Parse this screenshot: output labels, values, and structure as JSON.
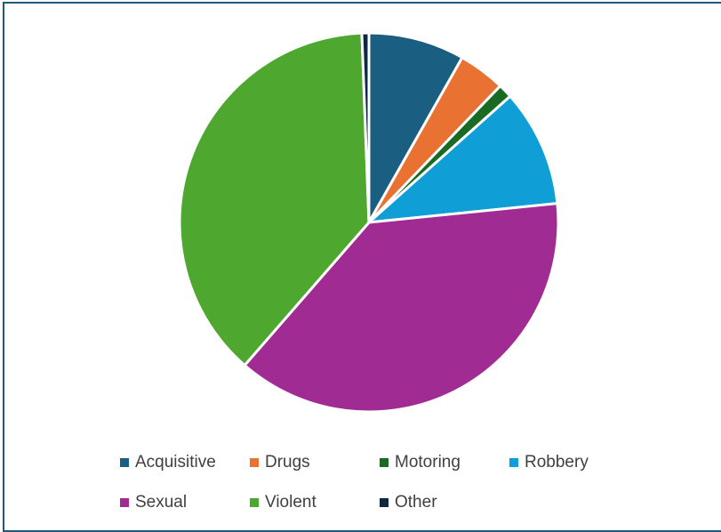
{
  "chart_data": {
    "type": "pie",
    "title": "",
    "categories": [
      "Acquisitive",
      "Drugs",
      "Motoring",
      "Robbery",
      "Sexual",
      "Violent",
      "Other"
    ],
    "values": [
      8.2,
      4.0,
      1.2,
      10.0,
      38.0,
      38.0,
      0.6
    ],
    "colors": [
      "#1a5e82",
      "#e97132",
      "#196b24",
      "#0f9ed5",
      "#a02b93",
      "#4ea72e",
      "#0e2841"
    ],
    "start_angle_deg": 0,
    "direction": "clockwise",
    "legend": {
      "position": "bottom"
    }
  }
}
